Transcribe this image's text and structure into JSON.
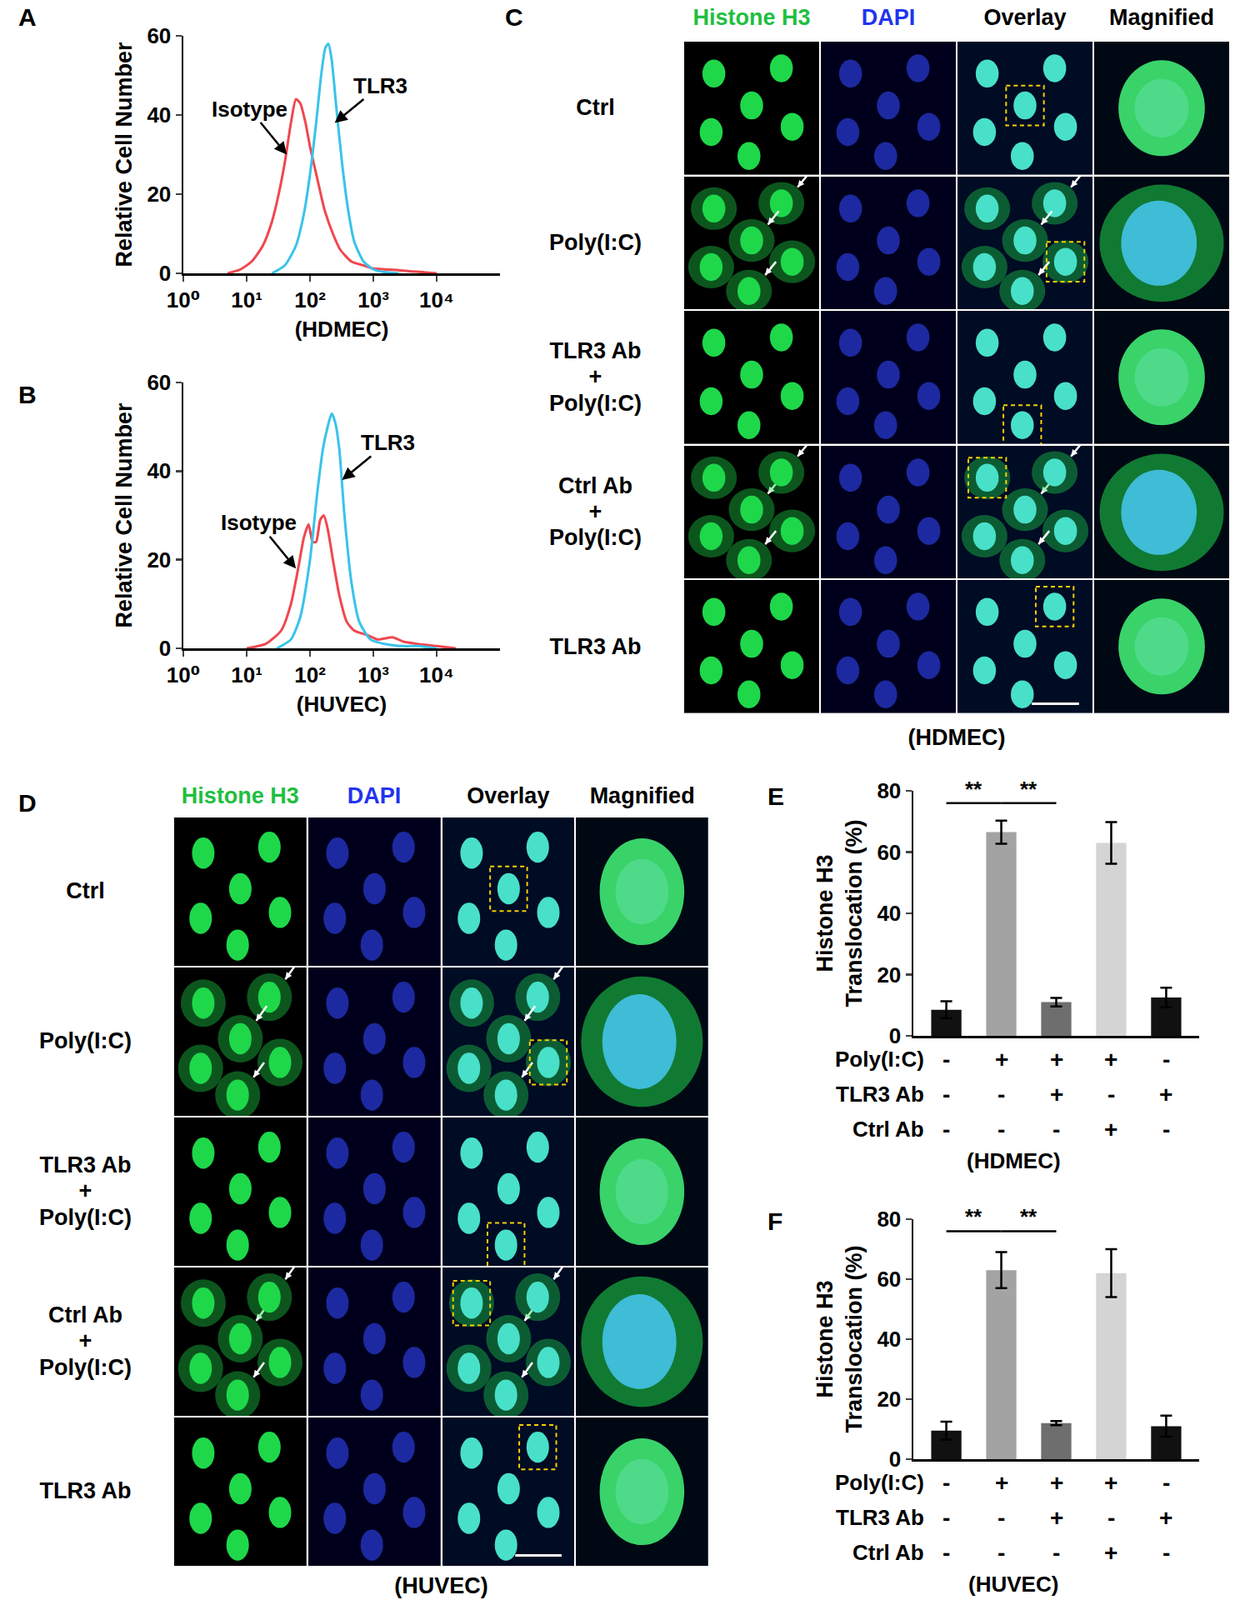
{
  "chart_data": [
    {
      "panel": "A",
      "type": "line",
      "x_label": "(HDMEC)",
      "y_label": "Relative Cell Number",
      "log": "x",
      "xlim": [
        1,
        100000
      ],
      "xticks": [
        {
          "value": 1,
          "label": "10⁰"
        },
        {
          "value": 10,
          "label": "10¹"
        },
        {
          "value": 100,
          "label": "10²"
        },
        {
          "value": 1000,
          "label": "10³"
        },
        {
          "value": 10000,
          "label": "10⁴"
        }
      ],
      "ylim": [
        0,
        60
      ],
      "yticks": [
        0,
        20,
        40,
        60
      ],
      "series": [
        {
          "name": "Isotype",
          "color": "#f0474f",
          "x": [
            5,
            8,
            12,
            18,
            25,
            32,
            40,
            50,
            60,
            70,
            85,
            100,
            130,
            170,
            230,
            300,
            450,
            700,
            1000,
            1500,
            2500,
            4000,
            6000,
            10000
          ],
          "values": [
            0,
            1,
            3,
            7,
            13,
            20,
            28,
            38,
            44,
            43,
            38,
            32,
            24,
            16,
            10,
            6,
            3,
            2,
            1.2,
            1,
            0.8,
            0.5,
            0.3,
            0
          ],
          "label_point": {
            "x": 43,
            "y": 30
          }
        },
        {
          "name": "TLR3",
          "color": "#39c3ea",
          "x": [
            25,
            40,
            60,
            80,
            100,
            125,
            150,
            175,
            195,
            220,
            260,
            320,
            400,
            500,
            700,
            1000,
            1500,
            2500
          ],
          "values": [
            0,
            2,
            7,
            15,
            25,
            38,
            50,
            57,
            58,
            54,
            42,
            28,
            16,
            8,
            3,
            1,
            0.3,
            0
          ],
          "label_point": {
            "x": 245,
            "y": 38
          }
        }
      ]
    },
    {
      "panel": "B",
      "type": "line",
      "x_label": "(HUVEC)",
      "y_label": "Relative Cell Number",
      "log": "x",
      "xlim": [
        1,
        100000
      ],
      "xticks": [
        {
          "value": 1,
          "label": "10⁰"
        },
        {
          "value": 10,
          "label": "10¹"
        },
        {
          "value": 100,
          "label": "10²"
        },
        {
          "value": 1000,
          "label": "10³"
        },
        {
          "value": 10000,
          "label": "10⁴"
        }
      ],
      "ylim": [
        0,
        60
      ],
      "yticks": [
        0,
        20,
        40,
        60
      ],
      "series": [
        {
          "name": "Isotype",
          "color": "#f0474f",
          "x": [
            10,
            20,
            35,
            50,
            65,
            80,
            95,
            110,
            125,
            145,
            165,
            190,
            230,
            290,
            380,
            500,
            800,
            1200,
            2000,
            3000,
            5000,
            10000,
            20000
          ],
          "values": [
            0,
            1,
            4,
            10,
            18,
            25,
            28,
            24,
            24,
            29,
            30,
            27,
            20,
            12,
            6,
            4,
            3,
            2,
            2.5,
            1.5,
            1,
            0.5,
            0
          ],
          "label_point": {
            "x": 60,
            "y": 18
          }
        },
        {
          "name": "TLR3",
          "color": "#39c3ea",
          "x": [
            30,
            50,
            70,
            100,
            130,
            160,
            190,
            220,
            250,
            290,
            350,
            450,
            600,
            900,
            1500,
            3000,
            5000,
            10000
          ],
          "values": [
            0,
            2,
            7,
            20,
            35,
            45,
            50,
            53,
            51,
            45,
            30,
            15,
            6,
            2,
            1,
            0.5,
            0.5,
            0
          ],
          "label_point": {
            "x": 320,
            "y": 38
          }
        }
      ]
    },
    {
      "panel": "E",
      "type": "bar",
      "x_label": "(HDMEC)",
      "y_label": [
        "Histone H3",
        "Translocation (%)"
      ],
      "categories": [
        null,
        null,
        null,
        null,
        null
      ],
      "values": [
        8.5,
        66.5,
        11,
        63,
        12.5
      ],
      "errors": [
        2.8,
        3.8,
        1.4,
        6.8,
        3.2
      ],
      "colors": [
        "#111111",
        "#a3a3a3",
        "#6e6e6e",
        "#d4d4d4",
        "#111111"
      ],
      "ylim": [
        0,
        80
      ],
      "yticks": [
        0,
        20,
        40,
        60,
        80
      ],
      "tick_labels": "y",
      "conditions": [
        {
          "label": "Poly(I:C)",
          "marks": [
            "-",
            "+",
            "+",
            "+",
            "-"
          ]
        },
        {
          "label": "TLR3 Ab",
          "marks": [
            "-",
            "-",
            "+",
            "-",
            "+"
          ]
        },
        {
          "label": "Ctrl Ab",
          "marks": [
            "-",
            "-",
            "-",
            "+",
            "-"
          ]
        }
      ],
      "significance": [
        {
          "from": 0,
          "to": 1,
          "y": 76,
          "text": "**"
        },
        {
          "from": 1,
          "to": 2,
          "y": 76,
          "text": "**"
        }
      ]
    },
    {
      "panel": "F",
      "type": "bar",
      "x_label": "(HUVEC)",
      "y_label": [
        "Histone H3",
        "Translocation (%)"
      ],
      "categories": [
        null,
        null,
        null,
        null,
        null
      ],
      "values": [
        9.5,
        63,
        12,
        62,
        11
      ],
      "errors": [
        3,
        6,
        0.7,
        8,
        3.5
      ],
      "colors": [
        "#111111",
        "#a3a3a3",
        "#6e6e6e",
        "#d4d4d4",
        "#111111"
      ],
      "ylim": [
        0,
        80
      ],
      "yticks": [
        0,
        20,
        40,
        60,
        80
      ],
      "tick_labels": "y",
      "conditions": [
        {
          "label": "Poly(I:C)",
          "marks": [
            "-",
            "+",
            "+",
            "+",
            "-"
          ]
        },
        {
          "label": "TLR3 Ab",
          "marks": [
            "-",
            "-",
            "+",
            "-",
            "+"
          ]
        },
        {
          "label": "Ctrl Ab",
          "marks": [
            "-",
            "-",
            "-",
            "+",
            "-"
          ]
        }
      ],
      "significance": [
        {
          "from": 0,
          "to": 1,
          "y": 76,
          "text": "**"
        },
        {
          "from": 1,
          "to": 2,
          "y": 76,
          "text": "**"
        }
      ]
    }
  ],
  "micrographs": [
    {
      "panel": "C",
      "caption": "(HDMEC)",
      "columns": [
        {
          "label": "Histone H3",
          "color": "#1fbf3f"
        },
        {
          "label": "DAPI",
          "color": "#2233ee"
        },
        {
          "label": "Overlay",
          "color": "#000000"
        },
        {
          "label": "Magnified",
          "color": "#000000"
        }
      ],
      "rows": [
        {
          "label": [
            "Ctrl"
          ],
          "cytoplasmic": false
        },
        {
          "label": [
            "Poly(I:C)"
          ],
          "cytoplasmic": true
        },
        {
          "label": [
            "TLR3 Ab",
            "+",
            "Poly(I:C)"
          ],
          "cytoplasmic": false
        },
        {
          "label": [
            "Ctrl Ab",
            "+",
            "Poly(I:C)"
          ],
          "cytoplasmic": true
        },
        {
          "label": [
            "TLR3 Ab"
          ],
          "cytoplasmic": false
        }
      ]
    },
    {
      "panel": "D",
      "caption": "(HUVEC)",
      "columns": [
        {
          "label": "Histone H3",
          "color": "#1fbf3f"
        },
        {
          "label": "DAPI",
          "color": "#2233ee"
        },
        {
          "label": "Overlay",
          "color": "#000000"
        },
        {
          "label": "Magnified",
          "color": "#000000"
        }
      ],
      "rows": [
        {
          "label": [
            "Ctrl"
          ],
          "cytoplasmic": false
        },
        {
          "label": [
            "Poly(I:C)"
          ],
          "cytoplasmic": true
        },
        {
          "label": [
            "TLR3 Ab",
            "+",
            "Poly(I:C)"
          ],
          "cytoplasmic": false
        },
        {
          "label": [
            "Ctrl Ab",
            "+",
            "Poly(I:C)"
          ],
          "cytoplasmic": true
        },
        {
          "label": [
            "TLR3 Ab"
          ],
          "cytoplasmic": false
        }
      ]
    }
  ]
}
